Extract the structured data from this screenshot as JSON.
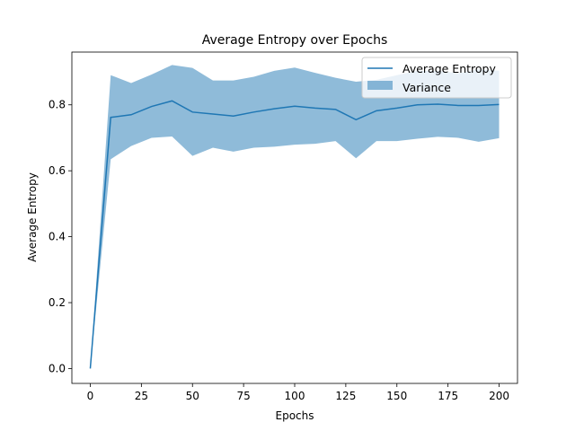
{
  "chart_data": {
    "type": "line",
    "title": "Average Entropy over Epochs",
    "xlabel": "Epochs",
    "ylabel": "Average Entropy",
    "xlim": [
      -9,
      209
    ],
    "ylim": [
      -0.045,
      0.96
    ],
    "xticks": [
      0,
      25,
      50,
      75,
      100,
      125,
      150,
      175,
      200
    ],
    "xtick_labels": [
      "0",
      "25",
      "50",
      "75",
      "100",
      "125",
      "150",
      "175",
      "200"
    ],
    "yticks": [
      0.0,
      0.2,
      0.4,
      0.6,
      0.8
    ],
    "ytick_labels": [
      "0.0",
      "0.2",
      "0.4",
      "0.6",
      "0.8"
    ],
    "grid": false,
    "legend_position": "top-right",
    "line_color": "#1f77b4",
    "band_color": "#1f77b4",
    "band_alpha": 0.5,
    "x": [
      0,
      10,
      20,
      30,
      40,
      50,
      60,
      70,
      80,
      90,
      100,
      110,
      120,
      130,
      140,
      150,
      160,
      170,
      180,
      190,
      200
    ],
    "series": [
      {
        "name": "Average Entropy",
        "values": [
          0.0,
          0.762,
          0.77,
          0.795,
          0.812,
          0.778,
          0.772,
          0.766,
          0.778,
          0.788,
          0.796,
          0.79,
          0.786,
          0.755,
          0.782,
          0.79,
          0.8,
          0.802,
          0.798,
          0.798,
          0.801
        ]
      }
    ],
    "band": {
      "name": "Variance",
      "upper": [
        0.0,
        0.89,
        0.866,
        0.892,
        0.921,
        0.912,
        0.874,
        0.874,
        0.885,
        0.903,
        0.913,
        0.897,
        0.882,
        0.87,
        0.876,
        0.89,
        0.903,
        0.903,
        0.896,
        0.908,
        0.903
      ],
      "lower": [
        0.0,
        0.635,
        0.675,
        0.7,
        0.704,
        0.645,
        0.67,
        0.658,
        0.67,
        0.673,
        0.679,
        0.682,
        0.69,
        0.638,
        0.69,
        0.69,
        0.697,
        0.703,
        0.7,
        0.688,
        0.699
      ]
    }
  }
}
